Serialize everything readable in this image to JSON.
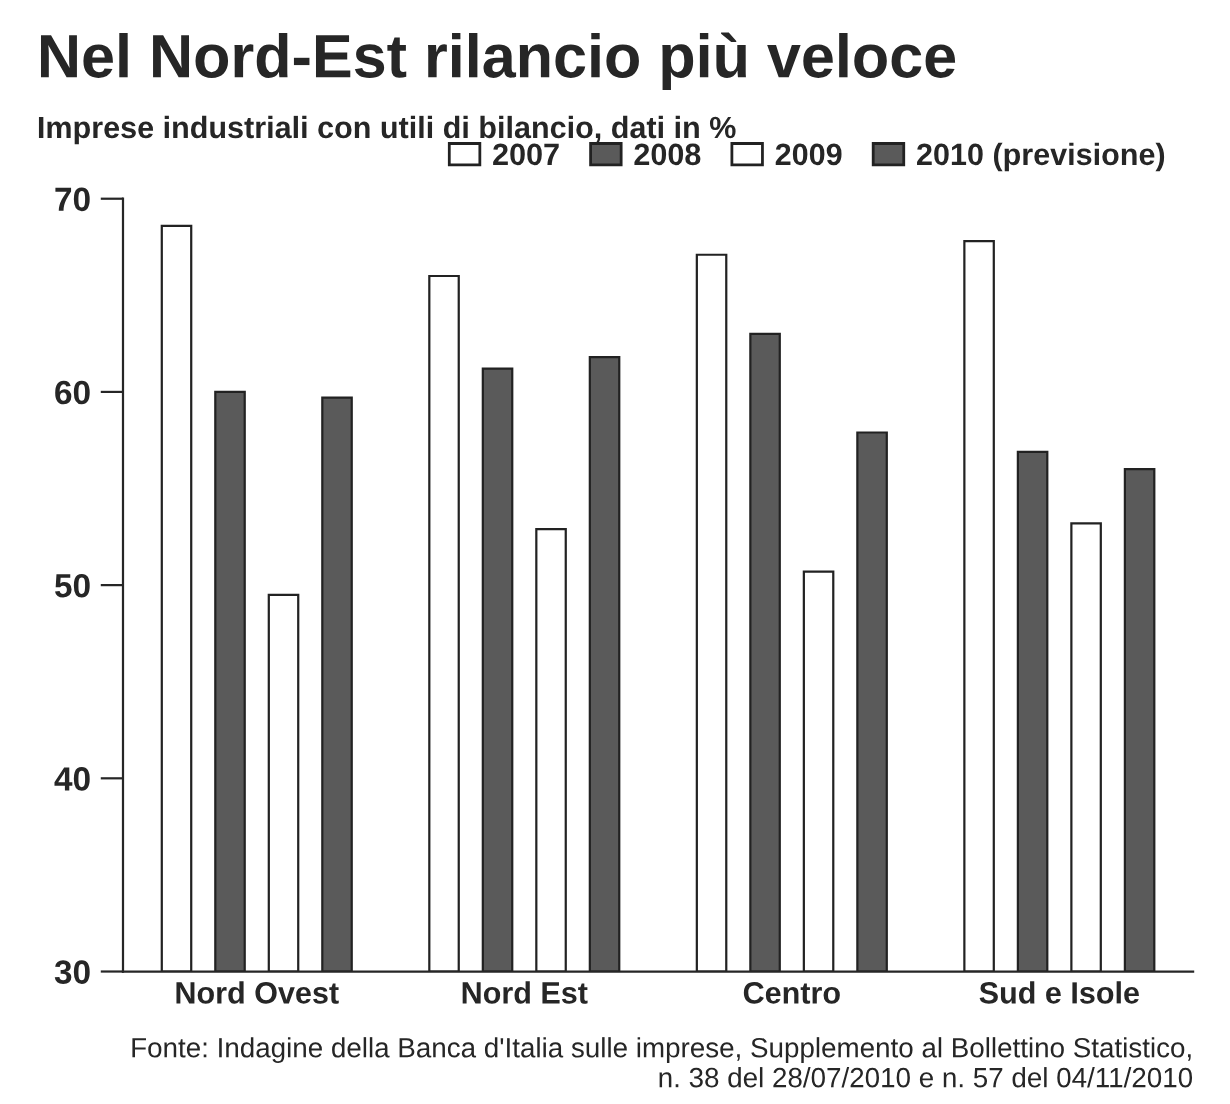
{
  "chart_data": {
    "type": "bar",
    "title": "Nel Nord-Est rilancio più veloce",
    "subtitle": "Imprese industriali con utili di bilancio, dati in %",
    "categories": [
      "Nord Ovest",
      "Nord Est",
      "Centro",
      "Sud e Isole"
    ],
    "series": [
      {
        "name": "2007",
        "color": "#ffffff",
        "values": [
          68.6,
          66.0,
          67.1,
          67.8
        ]
      },
      {
        "name": "2008",
        "color": "#5a5a5a",
        "values": [
          60.0,
          61.2,
          63.0,
          56.9
        ]
      },
      {
        "name": "2009",
        "color": "#ffffff",
        "values": [
          49.5,
          52.9,
          50.7,
          53.2
        ]
      },
      {
        "name": "2010 (previsione)",
        "color": "#5a5a5a",
        "values": [
          59.7,
          61.8,
          57.9,
          56.0
        ]
      }
    ],
    "ylim": [
      30,
      70
    ],
    "yticks": [
      30,
      40,
      50,
      60,
      70
    ],
    "grid": false,
    "legend": "top right",
    "annotations": [
      "Fonte: Indagine della Banca d'Italia sulle imprese, Supplemento al Bollettino Statistico,\nn. 38 del 28/07/2010 e n. 57 del 04/11/2010"
    ]
  }
}
